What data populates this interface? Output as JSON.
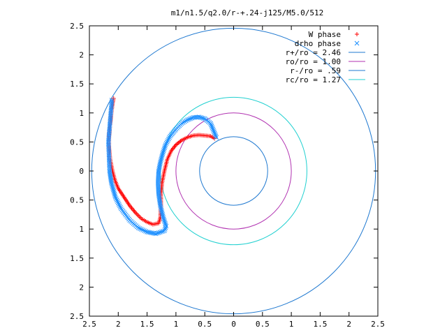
{
  "chart_data": {
    "type": "scatter",
    "title": "m1/n1.5/q2.0/r-+.24-j125/M5.0/512",
    "xlabel": "",
    "ylabel": "",
    "xlim": [
      2.5,
      -2.5
    ],
    "ylim": [
      -2.5,
      2.5
    ],
    "x_tick_labels": [
      "2.5",
      "2",
      "1.5",
      "1",
      "0.5",
      "0",
      "0.5",
      "1",
      "1.5",
      "2",
      "2.5"
    ],
    "y_tick_labels": [
      "2.5",
      "2",
      "1.5",
      "1",
      "0.5",
      "0",
      "0.5",
      "1",
      "1.5",
      "2",
      "2.5"
    ],
    "x_tick_values": [
      2.5,
      2,
      1.5,
      1,
      0.5,
      0,
      -0.5,
      -1,
      -1.5,
      -2,
      -2.5
    ],
    "y_tick_values": [
      2.5,
      2,
      1.5,
      1,
      0.5,
      0,
      -0.5,
      -1,
      -1.5,
      -2,
      -2.5
    ],
    "legend_position": "top-right",
    "series": [
      {
        "name": "W phase",
        "kind": "points",
        "marker": "+",
        "color": "#ff0000",
        "points": [
          [
            0.33,
            0.56
          ],
          [
            0.4,
            0.6
          ],
          [
            0.5,
            0.61
          ],
          [
            0.6,
            0.62
          ],
          [
            0.7,
            0.61
          ],
          [
            0.8,
            0.58
          ],
          [
            0.9,
            0.53
          ],
          [
            1.0,
            0.45
          ],
          [
            1.08,
            0.35
          ],
          [
            1.15,
            0.2
          ],
          [
            1.2,
            0.0
          ],
          [
            1.24,
            -0.2
          ],
          [
            1.26,
            -0.4
          ],
          [
            1.26,
            -0.6
          ],
          [
            1.27,
            -0.8
          ],
          [
            1.3,
            -0.9
          ],
          [
            1.4,
            -0.92
          ],
          [
            1.5,
            -0.88
          ],
          [
            1.6,
            -0.82
          ],
          [
            1.7,
            -0.72
          ],
          [
            1.8,
            -0.6
          ],
          [
            1.9,
            -0.45
          ],
          [
            2.0,
            -0.3
          ],
          [
            2.06,
            -0.15
          ],
          [
            2.1,
            0.0
          ],
          [
            2.14,
            0.2
          ],
          [
            2.16,
            0.4
          ],
          [
            2.16,
            0.6
          ],
          [
            2.14,
            0.8
          ],
          [
            2.12,
            1.0
          ],
          [
            2.1,
            1.15
          ],
          [
            2.08,
            1.25
          ]
        ]
      },
      {
        "name": "drho phase",
        "kind": "points",
        "marker": "x",
        "color": "#1e90ff",
        "points": [
          [
            0.3,
            0.58
          ],
          [
            0.35,
            0.7
          ],
          [
            0.4,
            0.82
          ],
          [
            0.5,
            0.9
          ],
          [
            0.6,
            0.93
          ],
          [
            0.7,
            0.92
          ],
          [
            0.8,
            0.88
          ],
          [
            0.9,
            0.82
          ],
          [
            1.0,
            0.72
          ],
          [
            1.1,
            0.6
          ],
          [
            1.18,
            0.45
          ],
          [
            1.23,
            0.3
          ],
          [
            1.27,
            0.15
          ],
          [
            1.3,
            0.0
          ],
          [
            1.31,
            -0.2
          ],
          [
            1.3,
            -0.4
          ],
          [
            1.27,
            -0.6
          ],
          [
            1.22,
            -0.8
          ],
          [
            1.17,
            -0.95
          ],
          [
            1.2,
            -1.03
          ],
          [
            1.35,
            -1.08
          ],
          [
            1.5,
            -1.05
          ],
          [
            1.65,
            -0.98
          ],
          [
            1.8,
            -0.85
          ],
          [
            1.95,
            -0.65
          ],
          [
            2.05,
            -0.45
          ],
          [
            2.12,
            -0.2
          ],
          [
            2.15,
            0.0
          ],
          [
            2.16,
            0.25
          ],
          [
            2.17,
            0.5
          ],
          [
            2.15,
            0.75
          ],
          [
            2.13,
            1.0
          ],
          [
            2.11,
            1.22
          ]
        ]
      },
      {
        "name": "r+/ro = 2.46",
        "kind": "circle",
        "r": 2.46,
        "color": "#1e78d0"
      },
      {
        "name": "ro/ro = 1.00",
        "kind": "circle",
        "r": 1.0,
        "color": "#b030b0"
      },
      {
        "name": "r-/ro = .59",
        "kind": "circle",
        "r": 0.59,
        "color": "#1e78d0"
      },
      {
        "name": "rc/ro = 1.27",
        "kind": "circle",
        "r": 1.27,
        "color": "#20d0d0"
      }
    ],
    "legend": [
      {
        "label": "W phase",
        "marker": "+",
        "color": "#ff0000"
      },
      {
        "label": "drho phase",
        "marker": "x",
        "color": "#1e90ff"
      },
      {
        "label": "r+/ro = 2.46",
        "marker": "line",
        "color": "#1e78d0"
      },
      {
        "label": "ro/ro = 1.00",
        "marker": "line",
        "color": "#b030b0"
      },
      {
        "label": "r-/ro = .59",
        "marker": "line",
        "color": "#1e78d0"
      },
      {
        "label": "rc/ro = 1.27",
        "marker": "line",
        "color": "#20d0d0"
      }
    ]
  }
}
